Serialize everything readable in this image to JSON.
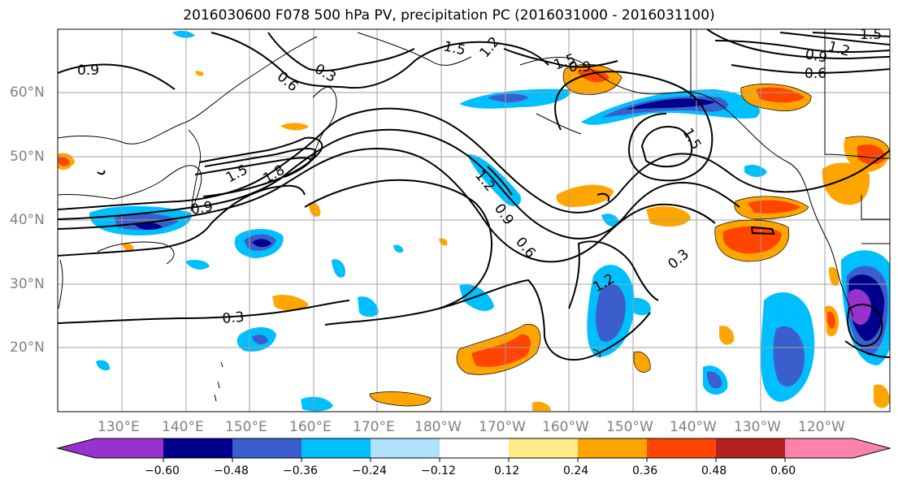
{
  "title": "2016030600 F078 500 hPa PV, precipitation PC (2016031000 - 2016031100)",
  "axes": {
    "lat_labels": [
      "60°N",
      "50°N",
      "40°N",
      "30°N",
      "20°N"
    ],
    "lon_labels": [
      "130°E",
      "140°E",
      "150°E",
      "160°E",
      "170°E",
      "180°W",
      "170°W",
      "160°W",
      "150°W",
      "140°W",
      "130°W",
      "120°W"
    ]
  },
  "contour_labels": [
    "0.9",
    "1.5",
    "0.6",
    "0.3",
    "1.2",
    "1.5",
    "0.9",
    "0.9",
    "0.6",
    "1.5",
    "1.2",
    "1.8",
    "1.5",
    "0.9",
    "1.2",
    "0.9",
    "0.6",
    "0.3",
    "1.2",
    "0.3",
    "1.5"
  ],
  "colorbar": {
    "ticks": [
      "−0.60",
      "−0.48",
      "−0.36",
      "−0.24",
      "−0.12",
      "0.12",
      "0.24",
      "0.36",
      "0.48",
      "0.60"
    ],
    "colors": [
      "#9932cc",
      "#00008b",
      "#3a5fcd",
      "#00bfff",
      "#b0e2ff",
      "#ffffff",
      "#ffec8b",
      "#ffa500",
      "#ff4500",
      "#b22222",
      "#ff82ab"
    ]
  }
}
